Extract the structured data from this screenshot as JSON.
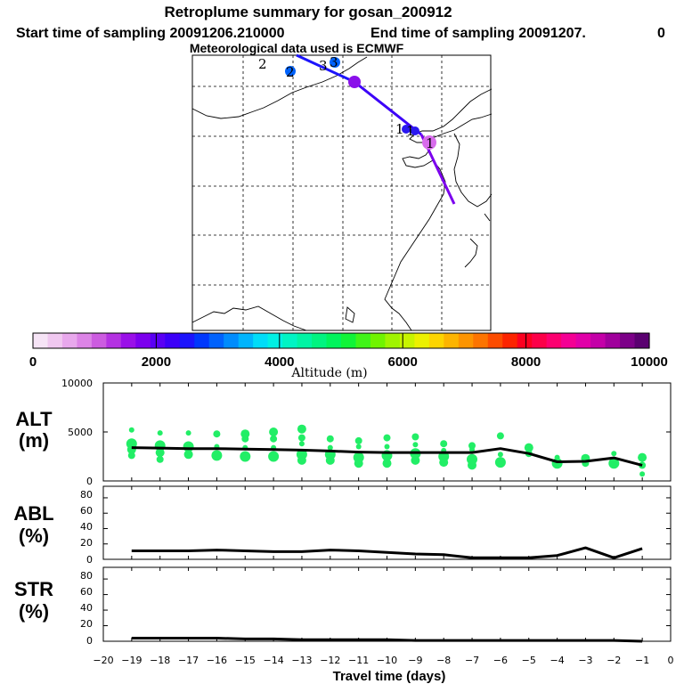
{
  "header": {
    "title": "Retroplume summary for gosan_200912",
    "start": "Start time of sampling 20091206.210000",
    "end": "End time of sampling 20091207.",
    "end_tail": "0",
    "met": "Meteorological data used is ECMWF"
  },
  "colorbar": {
    "label": "Altitude (m)",
    "ticks": [
      "0",
      "2000",
      "4000",
      "6000",
      "8000",
      "10000"
    ],
    "colors": [
      "#f6e4f6",
      "#f0c8f0",
      "#e8a8ec",
      "#dc84e6",
      "#cc5ce0",
      "#b432e2",
      "#9a10e8",
      "#7c00ee",
      "#5a00f4",
      "#3c00f8",
      "#1c14fc",
      "#0038fc",
      "#0062fc",
      "#008cfc",
      "#00b4fc",
      "#00dcf8",
      "#00f0e4",
      "#00f4c4",
      "#00f4a4",
      "#00f480",
      "#00f45c",
      "#10f438",
      "#40f418",
      "#70f400",
      "#a0f400",
      "#c8f400",
      "#ecf000",
      "#fcd400",
      "#fcb400",
      "#fc9400",
      "#fc7400",
      "#fc4c00",
      "#fc2400",
      "#fc0020",
      "#fc0048",
      "#fc0070",
      "#f40094",
      "#e000a8",
      "#c400a8",
      "#a0009c",
      "#7c0088",
      "#5a0070"
    ]
  },
  "map": {
    "point_labels": [
      "2",
      "2",
      "3",
      "3",
      "1",
      "1",
      "1"
    ],
    "segment_colors": [
      "#7b00ee",
      "#3c00f8",
      "#1c14fc"
    ]
  },
  "panels": {
    "alt": {
      "label_top": "ALT",
      "label_bottom": "(m)",
      "yticks": [
        "10000",
        "5000",
        "0"
      ]
    },
    "abl": {
      "label_top": "ABL",
      "label_bottom": "(%)",
      "yticks": [
        "80",
        "60",
        "40",
        "20",
        "0"
      ]
    },
    "str": {
      "label_top": "STR",
      "label_bottom": "(%)",
      "yticks": [
        "80",
        "60",
        "40",
        "20",
        "0"
      ]
    }
  },
  "xaxis": {
    "label": "Travel time (days)",
    "ticks": [
      "−20",
      "−19",
      "−18",
      "−17",
      "−16",
      "−15",
      "−14",
      "−13",
      "−12",
      "−11",
      "−10",
      "−9",
      "−8",
      "−7",
      "−6",
      "−5",
      "−4",
      "−3",
      "−2",
      "−1",
      "0"
    ]
  },
  "chart_data": [
    {
      "type": "scatter",
      "title": "ALT (m)",
      "xlabel": "Travel time (days)",
      "ylabel": "ALT (m)",
      "xlim": [
        -20,
        0
      ],
      "ylim": [
        0,
        10000
      ],
      "mean_line": {
        "x": [
          -19,
          -18,
          -17,
          -16,
          -15,
          -14,
          -13,
          -12,
          -11,
          -10,
          -9,
          -8,
          -7,
          -6,
          -5,
          -4,
          -3,
          -2,
          -1
        ],
        "y": [
          3400,
          3350,
          3300,
          3300,
          3250,
          3200,
          3150,
          3050,
          2950,
          2900,
          2900,
          2900,
          2900,
          3300,
          2800,
          1950,
          2000,
          2350,
          1600
        ]
      },
      "points": [
        {
          "x": -19,
          "y": 5200
        },
        {
          "x": -19,
          "y": 3800
        },
        {
          "x": -19,
          "y": 3200
        },
        {
          "x": -19,
          "y": 2600
        },
        {
          "x": -18,
          "y": 4900
        },
        {
          "x": -18,
          "y": 3600
        },
        {
          "x": -18,
          "y": 2900
        },
        {
          "x": -18,
          "y": 2200
        },
        {
          "x": -17,
          "y": 4900
        },
        {
          "x": -17,
          "y": 3500
        },
        {
          "x": -17,
          "y": 2700
        },
        {
          "x": -16,
          "y": 4800
        },
        {
          "x": -16,
          "y": 3500
        },
        {
          "x": -16,
          "y": 2600
        },
        {
          "x": -15,
          "y": 4800
        },
        {
          "x": -15,
          "y": 4300
        },
        {
          "x": -15,
          "y": 3400
        },
        {
          "x": -15,
          "y": 2500
        },
        {
          "x": -14,
          "y": 5000
        },
        {
          "x": -14,
          "y": 4300
        },
        {
          "x": -14,
          "y": 3400
        },
        {
          "x": -14,
          "y": 2500
        },
        {
          "x": -13,
          "y": 5300
        },
        {
          "x": -13,
          "y": 4400
        },
        {
          "x": -13,
          "y": 3800
        },
        {
          "x": -13,
          "y": 2700
        },
        {
          "x": -13,
          "y": 2100
        },
        {
          "x": -12,
          "y": 4300
        },
        {
          "x": -12,
          "y": 3400
        },
        {
          "x": -12,
          "y": 2700
        },
        {
          "x": -12,
          "y": 2100
        },
        {
          "x": -11,
          "y": 4100
        },
        {
          "x": -11,
          "y": 3500
        },
        {
          "x": -11,
          "y": 2400
        },
        {
          "x": -11,
          "y": 1800
        },
        {
          "x": -10,
          "y": 4400
        },
        {
          "x": -10,
          "y": 3500
        },
        {
          "x": -10,
          "y": 2600
        },
        {
          "x": -10,
          "y": 1800
        },
        {
          "x": -9,
          "y": 4500
        },
        {
          "x": -9,
          "y": 3700
        },
        {
          "x": -9,
          "y": 2800
        },
        {
          "x": -9,
          "y": 2100
        },
        {
          "x": -8,
          "y": 3800
        },
        {
          "x": -8,
          "y": 3100
        },
        {
          "x": -8,
          "y": 2500
        },
        {
          "x": -8,
          "y": 1900
        },
        {
          "x": -7,
          "y": 3600
        },
        {
          "x": -7,
          "y": 3200
        },
        {
          "x": -7,
          "y": 2200
        },
        {
          "x": -7,
          "y": 1600
        },
        {
          "x": -6,
          "y": 4600
        },
        {
          "x": -6,
          "y": 2700
        },
        {
          "x": -6,
          "y": 1900
        },
        {
          "x": -5,
          "y": 3400
        },
        {
          "x": -5,
          "y": 2800
        },
        {
          "x": -4,
          "y": 2400
        },
        {
          "x": -4,
          "y": 1800
        },
        {
          "x": -3,
          "y": 2300
        },
        {
          "x": -3,
          "y": 1800
        },
        {
          "x": -2,
          "y": 2800
        },
        {
          "x": -2,
          "y": 1800
        },
        {
          "x": -1,
          "y": 2400
        },
        {
          "x": -1,
          "y": 1600
        },
        {
          "x": -1,
          "y": 700
        }
      ]
    },
    {
      "type": "line",
      "title": "ABL (%)",
      "xlabel": "Travel time (days)",
      "ylabel": "ABL (%)",
      "xlim": [
        -20,
        0
      ],
      "ylim": [
        0,
        95
      ],
      "x": [
        -19,
        -18,
        -17,
        -16,
        -15,
        -14,
        -13,
        -12,
        -11,
        -10,
        -9,
        -8,
        -7,
        -6,
        -5,
        -4,
        -3,
        -2,
        -1
      ],
      "y": [
        11,
        11,
        11,
        12,
        11,
        10,
        10,
        12,
        11,
        9,
        7,
        6,
        2,
        2,
        2,
        5,
        15,
        2,
        14
      ]
    },
    {
      "type": "line",
      "title": "STR (%)",
      "xlabel": "Travel time (days)",
      "ylabel": "STR (%)",
      "xlim": [
        -20,
        0
      ],
      "ylim": [
        0,
        95
      ],
      "x": [
        -19,
        -18,
        -17,
        -16,
        -15,
        -14,
        -13,
        -12,
        -11,
        -10,
        -9,
        -8,
        -7,
        -6,
        -5,
        -4,
        -3,
        -2,
        -1
      ],
      "y": [
        4,
        4,
        4,
        4,
        3,
        3,
        2,
        2,
        2,
        2,
        1,
        1,
        1,
        1,
        1,
        1,
        1,
        1,
        0
      ]
    }
  ]
}
